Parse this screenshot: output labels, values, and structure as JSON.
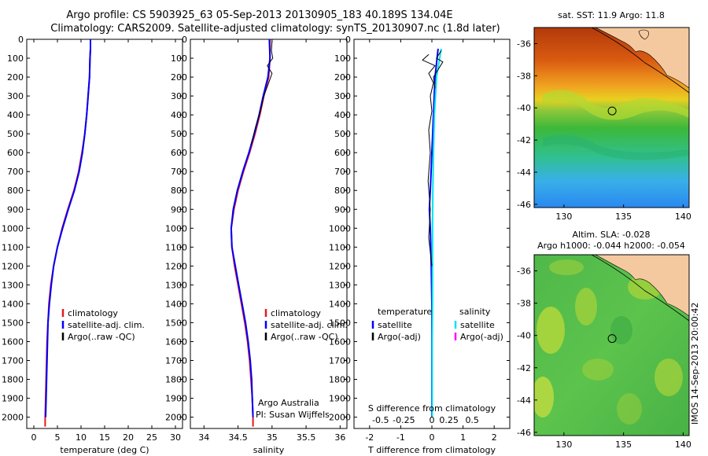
{
  "header": {
    "title_line1": "Argo profile: CS 5903925_63 05-Sep-2013 20130905_183 40.189S 134.04E",
    "title_line2": "Climatology: CARS2009. Satellite-adjusted climatology: synTS_20130907.nc (1.8d later)"
  },
  "colors": {
    "climatology": "#e41a1c",
    "satellite": "#0000ff",
    "argo": "#000000",
    "sal_satellite": "#00e5ee",
    "sal_argo": "#ff00ff",
    "land": "#f5c9a0"
  },
  "chart_data": [
    {
      "type": "line",
      "panel": "temperature",
      "xlabel": "temperature (deg C)",
      "xticks": [
        0,
        5,
        10,
        15,
        20,
        25,
        30
      ],
      "xlim": [
        -1.5,
        31.5
      ],
      "yticks": [
        0,
        100,
        200,
        300,
        400,
        500,
        600,
        700,
        800,
        900,
        1000,
        1100,
        1200,
        1300,
        1400,
        1500,
        1600,
        1700,
        1800,
        1900,
        2000
      ],
      "ylim": [
        0,
        2060
      ],
      "y_reversed": true,
      "legend": [
        "climatology",
        "satellite-adj. clim.",
        "Argo(..raw -QC)"
      ],
      "series": [
        {
          "name": "climatology",
          "color": "#e41a1c",
          "points": [
            [
              12.0,
              0
            ],
            [
              12.0,
              50
            ],
            [
              11.9,
              100
            ],
            [
              11.8,
              200
            ],
            [
              11.5,
              300
            ],
            [
              11.2,
              400
            ],
            [
              10.8,
              500
            ],
            [
              10.2,
              600
            ],
            [
              9.5,
              700
            ],
            [
              8.5,
              800
            ],
            [
              7.2,
              900
            ],
            [
              6.0,
              1000
            ],
            [
              5.0,
              1100
            ],
            [
              4.2,
              1200
            ],
            [
              3.6,
              1300
            ],
            [
              3.2,
              1400
            ],
            [
              3.0,
              1500
            ],
            [
              2.8,
              1600
            ],
            [
              2.7,
              1700
            ],
            [
              2.6,
              1800
            ],
            [
              2.5,
              1900
            ],
            [
              2.4,
              2000
            ],
            [
              2.4,
              2050
            ]
          ]
        },
        {
          "name": "satellite-adj. clim.",
          "color": "#0000ff",
          "points": [
            [
              12.0,
              0
            ],
            [
              12.0,
              50
            ],
            [
              11.9,
              100
            ],
            [
              11.8,
              200
            ],
            [
              11.5,
              300
            ],
            [
              11.2,
              400
            ],
            [
              10.8,
              500
            ],
            [
              10.3,
              600
            ],
            [
              9.6,
              700
            ],
            [
              8.6,
              800
            ],
            [
              7.3,
              900
            ],
            [
              6.1,
              1000
            ],
            [
              5.0,
              1100
            ],
            [
              4.2,
              1200
            ],
            [
              3.7,
              1300
            ],
            [
              3.3,
              1400
            ],
            [
              3.0,
              1500
            ],
            [
              2.9,
              1600
            ],
            [
              2.8,
              1700
            ],
            [
              2.7,
              1800
            ],
            [
              2.6,
              1900
            ],
            [
              2.5,
              2000
            ]
          ]
        }
      ]
    },
    {
      "type": "line",
      "panel": "salinity",
      "xlabel": "salinity",
      "xticks": [
        34,
        34.5,
        35,
        35.5,
        36
      ],
      "xlim": [
        33.8,
        36.1
      ],
      "yticks": [
        0,
        100,
        200,
        300,
        400,
        500,
        600,
        700,
        800,
        900,
        1000,
        1100,
        1200,
        1300,
        1400,
        1500,
        1600,
        1700,
        1800,
        1900,
        2000
      ],
      "ylim": [
        0,
        2060
      ],
      "y_reversed": true,
      "legend": [
        "climatology",
        "satellite-adj. clim.",
        "Argo(..raw -QC)"
      ],
      "annotation": [
        "Argo Australia",
        "PI: Susan Wijffels"
      ],
      "series": [
        {
          "name": "climatology",
          "color": "#e41a1c",
          "points": [
            [
              34.97,
              0
            ],
            [
              34.97,
              100
            ],
            [
              34.95,
              200
            ],
            [
              34.88,
              300
            ],
            [
              34.82,
              400
            ],
            [
              34.75,
              500
            ],
            [
              34.67,
              600
            ],
            [
              34.58,
              700
            ],
            [
              34.5,
              800
            ],
            [
              34.44,
              900
            ],
            [
              34.4,
              1000
            ],
            [
              34.41,
              1100
            ],
            [
              34.45,
              1200
            ],
            [
              34.5,
              1300
            ],
            [
              34.55,
              1400
            ],
            [
              34.6,
              1500
            ],
            [
              34.64,
              1600
            ],
            [
              34.67,
              1700
            ],
            [
              34.69,
              1800
            ],
            [
              34.71,
              1900
            ],
            [
              34.72,
              2000
            ],
            [
              34.72,
              2050
            ]
          ]
        },
        {
          "name": "satellite-adj. clim.",
          "color": "#0000ff",
          "points": [
            [
              34.96,
              0
            ],
            [
              34.97,
              100
            ],
            [
              34.94,
              200
            ],
            [
              34.87,
              300
            ],
            [
              34.81,
              400
            ],
            [
              34.74,
              500
            ],
            [
              34.66,
              600
            ],
            [
              34.57,
              700
            ],
            [
              34.49,
              800
            ],
            [
              34.43,
              900
            ],
            [
              34.4,
              1000
            ],
            [
              34.41,
              1100
            ],
            [
              34.46,
              1200
            ],
            [
              34.51,
              1300
            ],
            [
              34.56,
              1400
            ],
            [
              34.61,
              1500
            ],
            [
              34.65,
              1600
            ],
            [
              34.68,
              1700
            ],
            [
              34.7,
              1800
            ],
            [
              34.71,
              1900
            ],
            [
              34.72,
              2000
            ]
          ]
        }
      ]
    },
    {
      "type": "line",
      "panel": "differences",
      "xlabel": "T difference from climatology",
      "xticks": [
        -2,
        -1,
        0,
        1,
        2
      ],
      "xlim": [
        -2.5,
        2.5
      ],
      "top_label": "S difference from climatology",
      "top_ticks": [
        "-0.5",
        "-0.25",
        "0",
        "0.25",
        "0.5"
      ],
      "yticks": [
        0,
        100,
        200,
        300,
        400,
        500,
        600,
        700,
        800,
        900,
        1000,
        1100,
        1200,
        1300,
        1400,
        1500,
        1600,
        1700,
        1800,
        1900,
        2000
      ],
      "ylim": [
        0,
        2060
      ],
      "y_reversed": true,
      "legend_titles": [
        "temperature",
        "salinity"
      ],
      "legend": [
        "satellite",
        "Argo(-adj)",
        "satellite",
        "Argo(-adj)"
      ],
      "series": [
        {
          "name": "satellite",
          "color": "#0000ff",
          "points": [
            [
              0.2,
              50
            ],
            [
              0.1,
              200
            ],
            [
              0.05,
              400
            ],
            [
              0.0,
              600
            ],
            [
              -0.05,
              800
            ],
            [
              -0.08,
              900
            ],
            [
              -0.05,
              1000
            ],
            [
              -0.02,
              1200
            ],
            [
              0.0,
              1400
            ],
            [
              0.0,
              1600
            ],
            [
              0.0,
              1800
            ],
            [
              0.0,
              2000
            ]
          ]
        },
        {
          "name": "satellite",
          "color": "#00e5ee",
          "points": [
            [
              0.3,
              50
            ],
            [
              0.15,
              200
            ],
            [
              0.08,
              400
            ],
            [
              0.05,
              600
            ],
            [
              0.03,
              800
            ],
            [
              0.02,
              1000
            ],
            [
              0.02,
              1200
            ],
            [
              0.02,
              1400
            ],
            [
              0.01,
              1600
            ],
            [
              0.01,
              1800
            ],
            [
              0.01,
              2000
            ]
          ]
        }
      ]
    },
    {
      "type": "heatmap",
      "panel": "sst_map",
      "title": "sat. SST: 11.9 Argo: 11.8",
      "xticks": [
        130,
        135,
        140
      ],
      "xlim": [
        127.5,
        140.5
      ],
      "yticks": [
        -36,
        -38,
        -40,
        -42,
        -44,
        -46
      ],
      "ylim": [
        -46.2,
        -35.0
      ],
      "profile_location": [
        134.04,
        -40.19
      ]
    },
    {
      "type": "heatmap",
      "panel": "sla_map",
      "title_line1": "Altim. SLA: -0.028",
      "title_line2": "Argo h1000: -0.044 h2000: -0.054",
      "xticks": [
        130,
        135,
        140
      ],
      "xlim": [
        127.5,
        140.5
      ],
      "yticks": [
        -36,
        -38,
        -40,
        -42,
        -44,
        -46
      ],
      "ylim": [
        -46.2,
        -35.0
      ],
      "profile_location": [
        134.04,
        -40.19
      ]
    }
  ],
  "stamp": "IMOS 14-Sep-2013 20:00:42"
}
